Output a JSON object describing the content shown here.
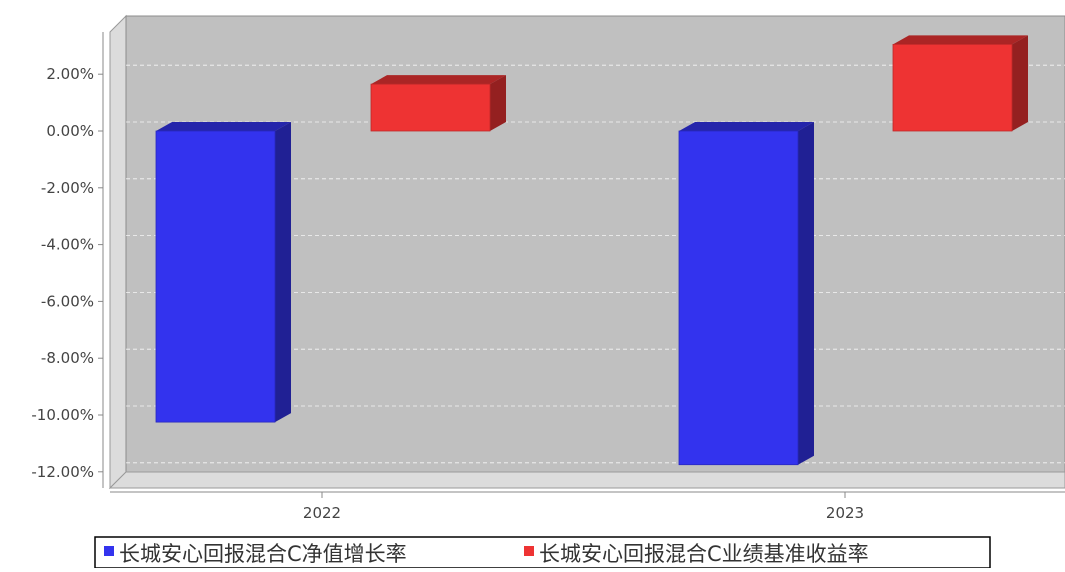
{
  "chart_data": {
    "type": "bar",
    "categories": [
      "2022",
      "2023"
    ],
    "series": [
      {
        "name": "长城安心回报混合C净值增长率",
        "values": [
          -10.25,
          -11.75
        ],
        "color": "#3333ee"
      },
      {
        "name": "长城安心回报混合C业绩基准收益率",
        "values": [
          1.65,
          3.05
        ],
        "color": "#ee3333"
      }
    ],
    "y_ticks": [
      "2.00%",
      "0.00%",
      "-2.00%",
      "-4.00%",
      "-6.00%",
      "-8.00%",
      "-10.00%",
      "-12.00%"
    ],
    "y_tick_values": [
      2,
      0,
      -2,
      -4,
      -6,
      -8,
      -10,
      -12
    ],
    "ylim": [
      -12.6,
      3.3
    ],
    "grid": true,
    "legend_position": "bottom",
    "style": "3d"
  }
}
